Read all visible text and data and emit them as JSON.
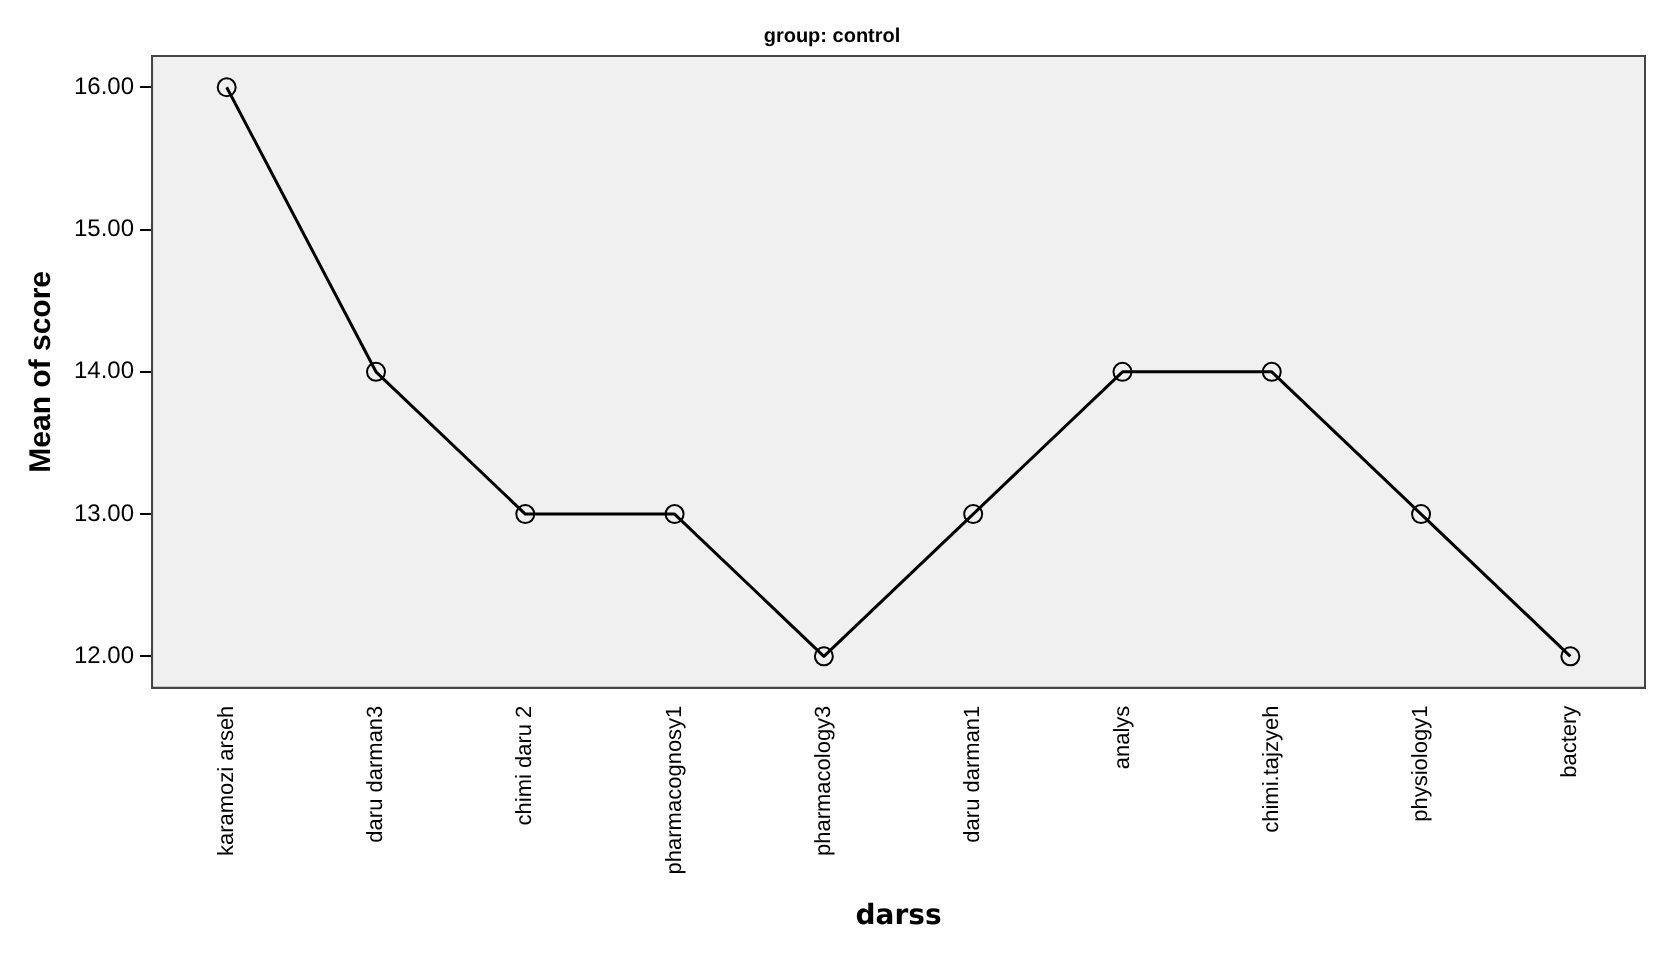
{
  "chart_data": {
    "type": "line",
    "title": "group: control",
    "xlabel": "darss",
    "ylabel": "Mean of score",
    "categories": [
      "karamozi arseh",
      "daru darman3",
      "chimi daru 2",
      "pharmacognosy1",
      "pharmacology3",
      "daru darman1",
      "analys",
      "chimi.tajzyeh",
      "physiology1",
      "bactery"
    ],
    "series": [
      {
        "color": "#000000",
        "values": [
          16,
          14,
          13,
          13,
          12,
          13,
          14,
          14,
          13,
          12
        ]
      }
    ],
    "ylim": [
      11.78,
      16.22
    ],
    "yticks": [
      {
        "value": 12,
        "label": "12.00"
      },
      {
        "value": 13,
        "label": "13.00"
      },
      {
        "value": 14,
        "label": "14.00"
      },
      {
        "value": 15,
        "label": "15.00"
      },
      {
        "value": 16,
        "label": "16.00"
      }
    ],
    "grid": false,
    "legend": false,
    "marker": "circle",
    "line_style": "solid"
  }
}
